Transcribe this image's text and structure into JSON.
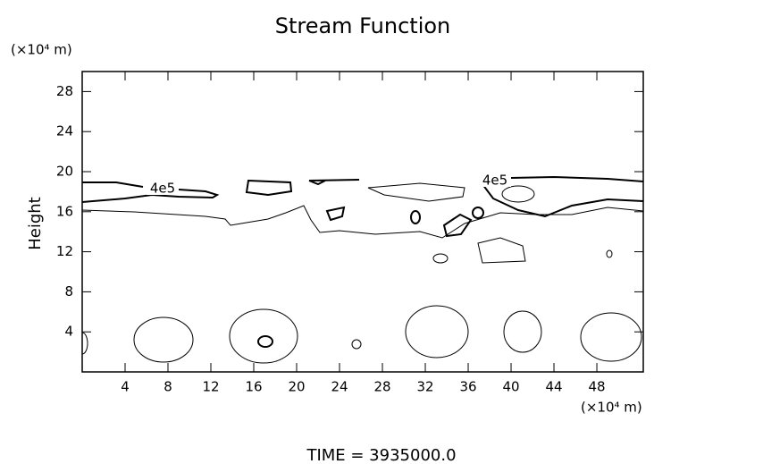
{
  "chart_data": {
    "type": "contour",
    "title": "Stream Function",
    "xlabel": "(×10⁴ m)",
    "ylabel": "Height",
    "yunit": "(×10⁴ m)",
    "footer": "TIME  =  3935000.0",
    "contour_labels": [
      "4e5",
      "4e5"
    ],
    "xlim": [
      0,
      52.33
    ],
    "xticks": [
      4,
      8,
      12,
      16,
      20,
      24,
      28,
      32,
      36,
      40,
      44,
      48
    ],
    "ylim": [
      0,
      30
    ],
    "yticks": [
      4,
      8,
      12,
      16,
      20,
      24,
      28
    ],
    "color": "#000000"
  }
}
